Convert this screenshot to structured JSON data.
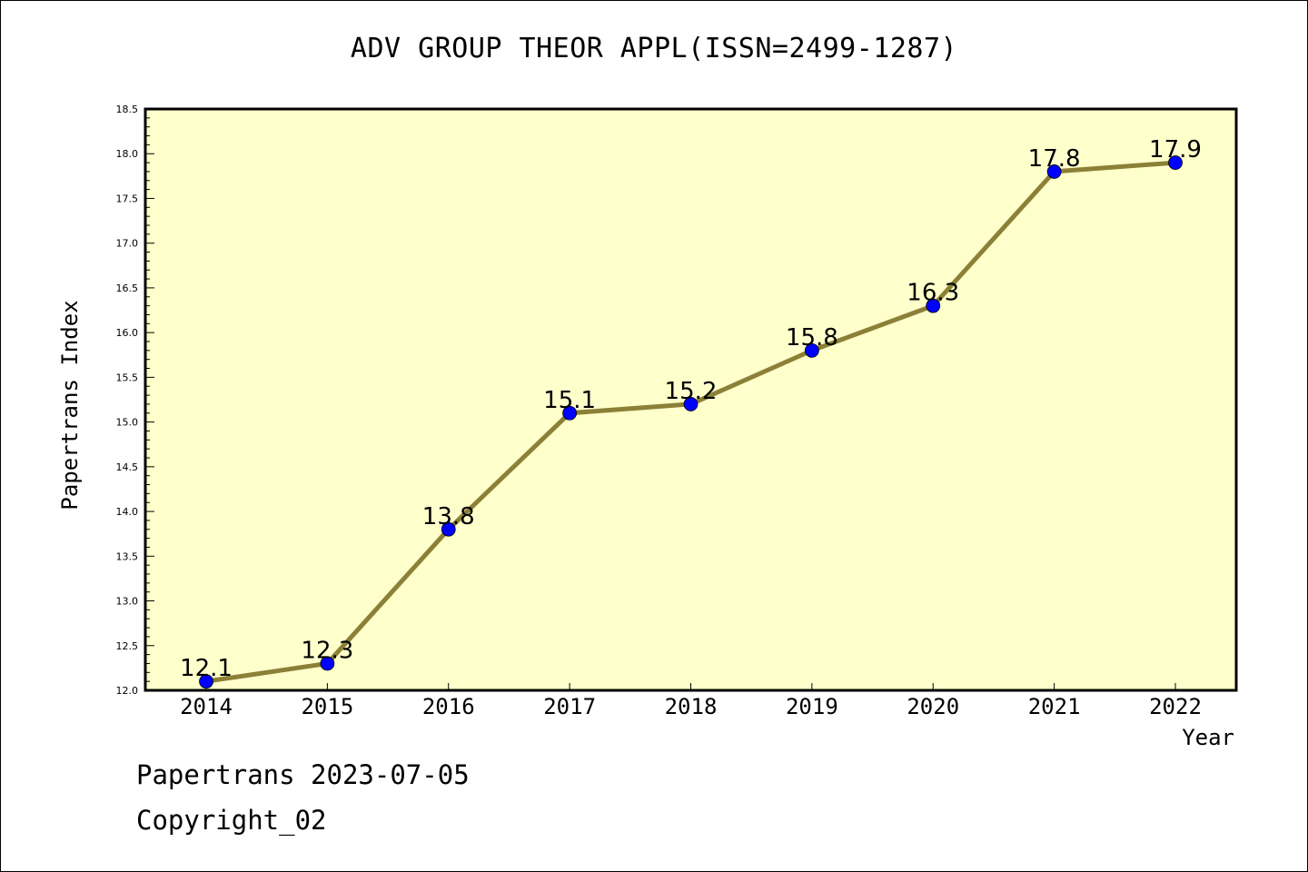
{
  "chart_data": {
    "type": "line",
    "title": "ADV GROUP THEOR APPL(ISSN=2499-1287)",
    "xlabel": "Year",
    "ylabel": "Papertrans Index",
    "categories": [
      "2014",
      "2015",
      "2016",
      "2017",
      "2018",
      "2019",
      "2020",
      "2021",
      "2022"
    ],
    "series": [
      {
        "values": [
          12.1,
          12.3,
          13.8,
          15.1,
          15.2,
          15.8,
          16.3,
          17.8,
          17.9
        ],
        "labels": [
          "12.1",
          "12.3",
          "13.8",
          "15.1",
          "15.2",
          "15.8",
          "16.3",
          "17.8",
          "17.9"
        ]
      }
    ],
    "ylim": [
      12.0,
      18.5
    ],
    "yticks": [
      "12.0",
      "12.5",
      "13.0",
      "13.5",
      "14.0",
      "14.5",
      "15.0",
      "15.5",
      "16.0",
      "16.5",
      "17.0",
      "17.5",
      "18.0",
      "18.5"
    ],
    "grid": false,
    "legend": "none",
    "colors": {
      "plot_background": "#ffffcc",
      "line": "#8b8036",
      "marker": "#0000ff",
      "axis": "#000000"
    }
  },
  "footer": {
    "date_text": "Papertrans 2023-07-05",
    "copyright_text": "Copyright_02"
  }
}
